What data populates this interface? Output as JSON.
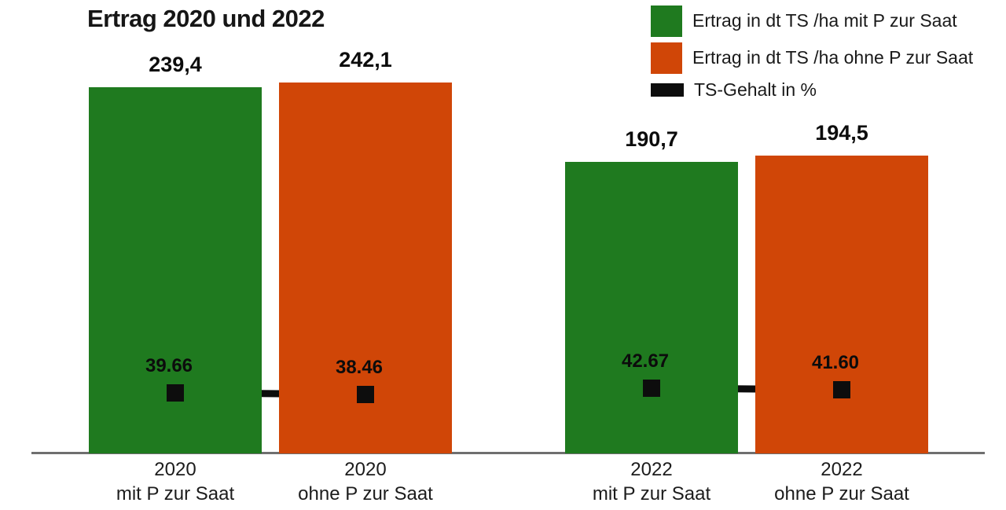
{
  "colors": {
    "green": "#1f7a1f",
    "orange": "#d04607",
    "black": "#0d0d0d",
    "axis_gray": "#6f6f6f"
  },
  "legend": {
    "items": [
      {
        "label": "Ertrag in dt TS /ha mit P zur Saat",
        "color_key": "green",
        "swatch": "square"
      },
      {
        "label": "Ertrag in dt TS /ha ohne P zur Saat",
        "color_key": "orange",
        "swatch": "square"
      },
      {
        "label": "TS-Gehalt in %",
        "color_key": "black",
        "swatch": "line"
      }
    ]
  },
  "chart_data": {
    "type": "bar",
    "title": "Ertrag 2020 und 2022",
    "categories": [
      [
        "2020",
        "mit P zur Saat"
      ],
      [
        "2020",
        "ohne P zur Saat"
      ],
      [
        "2022",
        "mit P zur Saat"
      ],
      [
        "2022",
        "ohne P zur Saat"
      ]
    ],
    "series": [
      {
        "name": "Ertrag in dt TS /ha",
        "type": "bar",
        "values": [
          239.4,
          242.1,
          190.7,
          194.5
        ],
        "value_labels": [
          "239,4",
          "242,1",
          "190,7",
          "194,5"
        ],
        "bar_color_keys": [
          "green",
          "orange",
          "green",
          "orange"
        ]
      },
      {
        "name": "TS-Gehalt in %",
        "type": "line",
        "values": [
          39.66,
          38.46,
          42.67,
          41.6
        ],
        "value_labels": [
          "39.66",
          "38.46",
          "42.67",
          "41.60"
        ],
        "segments": [
          [
            0,
            1
          ],
          [
            2,
            3
          ]
        ]
      }
    ],
    "ylim": [
      0,
      250
    ],
    "grid": false,
    "legend_position": "top-right",
    "xlabel": "",
    "ylabel": ""
  }
}
